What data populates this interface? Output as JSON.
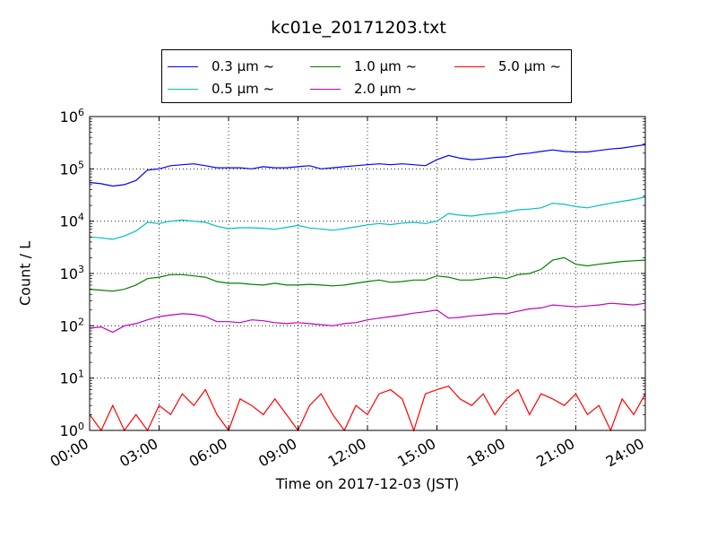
{
  "chart_data": {
    "type": "line",
    "title": "kc01e_20171203.txt",
    "xlabel": "Time on 2017-12-03 (JST)",
    "ylabel": "Count / L",
    "xlim": [
      "00:00",
      "24:00"
    ],
    "xticks": [
      "00:00",
      "03:00",
      "06:00",
      "09:00",
      "12:00",
      "15:00",
      "18:00",
      "21:00",
      "24:00"
    ],
    "yscale": "log",
    "ylim": [
      1,
      1000000
    ],
    "yticks": [
      {
        "base": "10",
        "exp": "0"
      },
      {
        "base": "10",
        "exp": "1"
      },
      {
        "base": "10",
        "exp": "2"
      },
      {
        "base": "10",
        "exp": "3"
      },
      {
        "base": "10",
        "exp": "4"
      },
      {
        "base": "10",
        "exp": "5"
      },
      {
        "base": "10",
        "exp": "6"
      }
    ],
    "grid": true,
    "legend_position": "top",
    "x_hours": [
      0,
      0.5,
      1,
      1.5,
      2,
      2.5,
      3,
      3.5,
      4,
      4.5,
      5,
      5.5,
      6,
      6.5,
      7,
      7.5,
      8,
      8.5,
      9,
      9.5,
      10,
      10.5,
      11,
      11.5,
      12,
      12.5,
      13,
      13.5,
      14,
      14.5,
      15,
      15.5,
      16,
      16.5,
      17,
      17.5,
      18,
      18.5,
      19,
      19.5,
      20,
      20.5,
      21,
      21.5,
      22,
      22.5,
      23,
      23.5,
      24
    ],
    "series": [
      {
        "name": "0.3 μm ~",
        "color": "#0000ff",
        "values": [
          55000,
          52000,
          47000,
          50000,
          60000,
          95000,
          100000,
          115000,
          120000,
          125000,
          115000,
          105000,
          105000,
          105000,
          100000,
          110000,
          105000,
          105000,
          110000,
          115000,
          100000,
          105000,
          110000,
          115000,
          120000,
          125000,
          120000,
          125000,
          120000,
          115000,
          150000,
          180000,
          160000,
          150000,
          155000,
          165000,
          170000,
          190000,
          200000,
          215000,
          230000,
          215000,
          210000,
          210000,
          225000,
          240000,
          250000,
          270000,
          290000
        ]
      },
      {
        "name": "0.5 μm ~",
        "color": "#00bfbf",
        "values": [
          5000,
          4800,
          4500,
          5200,
          6500,
          9500,
          9000,
          10000,
          10500,
          10000,
          9500,
          8000,
          7200,
          7500,
          7500,
          7300,
          7000,
          7600,
          8300,
          7400,
          7100,
          6700,
          7200,
          7800,
          8500,
          9000,
          8600,
          9200,
          9500,
          9000,
          10000,
          14000,
          13000,
          12500,
          13500,
          14000,
          15000,
          16500,
          17000,
          18000,
          22000,
          21000,
          19000,
          18000,
          20000,
          22000,
          24000,
          26000,
          29000
        ]
      },
      {
        "name": "1.0 μm ~",
        "color": "#008000",
        "values": [
          500,
          480,
          460,
          500,
          600,
          800,
          850,
          950,
          950,
          900,
          850,
          700,
          650,
          650,
          620,
          600,
          650,
          600,
          600,
          620,
          600,
          580,
          600,
          650,
          700,
          750,
          680,
          700,
          750,
          750,
          900,
          850,
          750,
          750,
          800,
          850,
          800,
          950,
          1000,
          1200,
          1800,
          2000,
          1500,
          1400,
          1500,
          1600,
          1700,
          1750,
          1800
        ]
      },
      {
        "name": "2.0 μm ~",
        "color": "#bf00bf",
        "values": [
          90,
          95,
          75,
          100,
          110,
          130,
          150,
          160,
          170,
          165,
          150,
          120,
          120,
          115,
          130,
          125,
          115,
          110,
          115,
          110,
          105,
          100,
          110,
          115,
          130,
          140,
          150,
          160,
          175,
          185,
          200,
          140,
          145,
          155,
          160,
          170,
          170,
          190,
          210,
          220,
          250,
          240,
          230,
          240,
          250,
          270,
          260,
          250,
          270
        ]
      },
      {
        "name": "5.0 μm ~",
        "color": "#ff0000",
        "values": [
          2,
          1,
          3,
          1,
          2,
          1,
          3,
          2,
          5,
          3,
          6,
          2,
          1,
          4,
          3,
          2,
          4,
          2,
          1,
          3,
          5,
          2,
          1,
          3,
          2,
          5,
          6,
          4,
          1,
          5,
          6,
          7,
          4,
          3,
          5,
          2,
          4,
          6,
          2,
          5,
          4,
          3,
          5,
          2,
          3,
          1,
          4,
          2,
          5
        ]
      }
    ]
  }
}
